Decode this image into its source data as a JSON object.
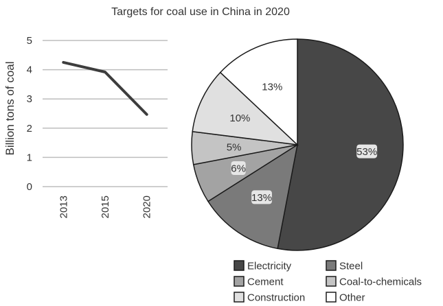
{
  "chart_data": [
    {
      "type": "line",
      "title": "Targets for coal use in China in 2020",
      "ylabel": "Billion tons of coal",
      "xlabel": "",
      "categories": [
        "2013",
        "2015",
        "2020"
      ],
      "values": [
        4.25,
        3.92,
        2.47
      ],
      "ylim": [
        0,
        5
      ],
      "yticks": [
        "0",
        "1",
        "2",
        "3",
        "4",
        "5"
      ],
      "grid": true,
      "line_color": "#3d3d3d"
    },
    {
      "type": "pie",
      "slices": [
        {
          "name": "Electricity",
          "value": 53,
          "label": "53%",
          "color": "#474747"
        },
        {
          "name": "Steel",
          "value": 13,
          "label": "13%",
          "color": "#7a7a7a"
        },
        {
          "name": "Cement",
          "value": 6,
          "label": "6%",
          "color": "#a3a3a3"
        },
        {
          "name": "Coal-to-chemicals",
          "value": 5,
          "label": "5%",
          "color": "#c4c4c4"
        },
        {
          "name": "Construction",
          "value": 10,
          "label": "10%",
          "color": "#e0e0e0"
        },
        {
          "name": "Other",
          "value": 13,
          "label": "13%",
          "color": "#ffffff"
        }
      ],
      "legend_position": "bottom"
    }
  ]
}
